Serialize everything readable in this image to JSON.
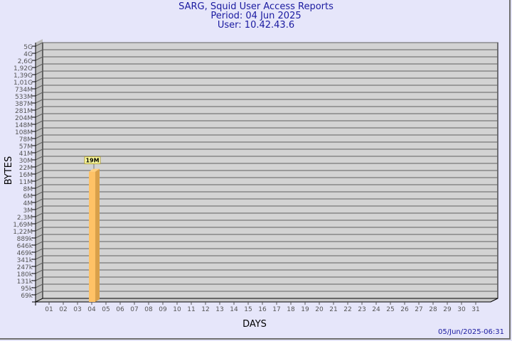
{
  "header": {
    "title": "SARG, Squid User Access Reports",
    "period": "Period: 04 Jun 2025",
    "user": "User: 10.42.43.6"
  },
  "footer": {
    "timestamp": "05/Jun/2025-06:31"
  },
  "chart_data": {
    "type": "bar",
    "title": "SARG, Squid User Access Reports",
    "xlabel": "DAYS",
    "ylabel": "BYTES",
    "y_scale": "log",
    "yticks": [
      "5G",
      "4G",
      "2,6G",
      "1,92G",
      "1,39G",
      "1,01G",
      "734M",
      "533M",
      "387M",
      "281M",
      "204M",
      "148M",
      "108M",
      "78M",
      "57M",
      "41M",
      "30M",
      "22M",
      "16M",
      "11M",
      "8M",
      "6M",
      "4M",
      "3M",
      "2,3M",
      "1,69M",
      "1,22M",
      "889k",
      "646k",
      "469k",
      "341k",
      "247k",
      "180k",
      "131k",
      "95k",
      "69k"
    ],
    "categories": [
      "01",
      "02",
      "03",
      "04",
      "05",
      "06",
      "07",
      "08",
      "09",
      "10",
      "11",
      "12",
      "13",
      "14",
      "15",
      "16",
      "17",
      "18",
      "19",
      "20",
      "21",
      "22",
      "23",
      "24",
      "25",
      "26",
      "27",
      "28",
      "29",
      "30",
      "31"
    ],
    "series": [
      {
        "values": [
          0,
          0,
          0,
          19,
          0,
          0,
          0,
          0,
          0,
          0,
          0,
          0,
          0,
          0,
          0,
          0,
          0,
          0,
          0,
          0,
          0,
          0,
          0,
          0,
          0,
          0,
          0,
          0,
          0,
          0,
          0
        ],
        "unit": "M",
        "labels": {
          "04": "19M"
        }
      }
    ],
    "grid": true,
    "colors": {
      "bar_front": "#ffc266",
      "bar_side": "#d9a04a",
      "wall": "#d3d3d3",
      "grid": "#606060",
      "label_bg": "#ffffa0"
    }
  }
}
